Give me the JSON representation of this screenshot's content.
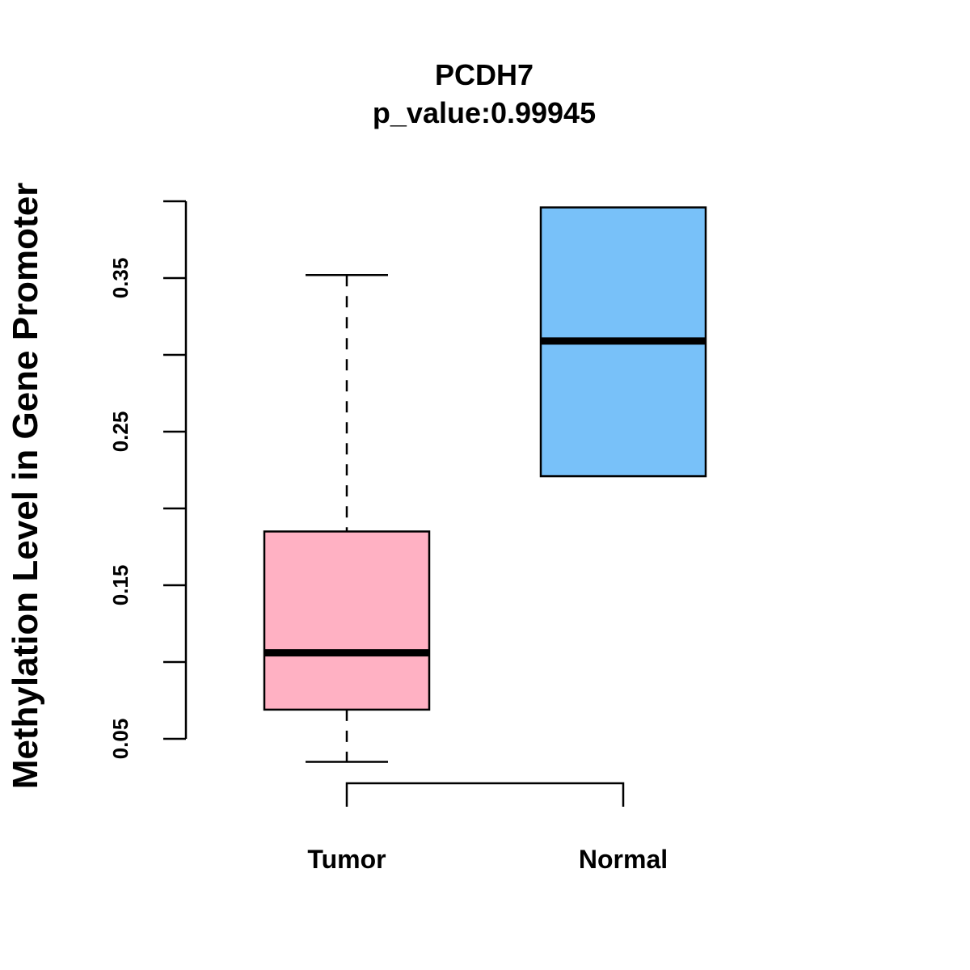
{
  "chart_data": {
    "type": "boxplot",
    "title": "PCDH7",
    "subtitle": "p_value:0.99945",
    "xlabel": "",
    "ylabel": "Methylation Level in Gene Promoter",
    "ylim": [
      0.05,
      0.4
    ],
    "yticks_major": [
      0.05,
      0.15,
      0.25,
      0.35
    ],
    "yticks_minor": [
      0.1,
      0.2,
      0.3,
      0.4
    ],
    "ytick_labels": [
      "0.05",
      "0.15",
      "0.25",
      "0.35"
    ],
    "grid": false,
    "categories": [
      "Tumor",
      "Normal"
    ],
    "boxes": [
      {
        "name": "Tumor",
        "whisker_low": 0.035,
        "q1": 0.069,
        "median": 0.106,
        "q3": 0.185,
        "whisker_high": 0.352,
        "color": "#FFB1C3"
      },
      {
        "name": "Normal",
        "whisker_low": 0.221,
        "q1": 0.221,
        "median": 0.309,
        "q3": 0.396,
        "whisker_high": 0.396,
        "color": "#78C1F9"
      }
    ]
  }
}
